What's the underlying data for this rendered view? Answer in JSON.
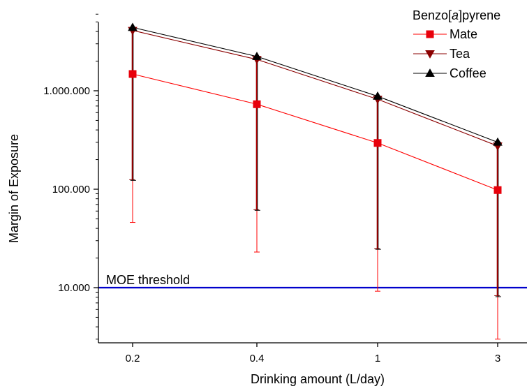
{
  "chart_data": {
    "type": "line",
    "title": "",
    "xlabel": "Drinking amount (L/day)",
    "ylabel": "Margin of Exposure",
    "x_scale": "categorical",
    "y_scale": "log",
    "categories": [
      "0.2",
      "0.4",
      "1",
      "3"
    ],
    "yticks": [
      {
        "value": 10000,
        "label": "10.000"
      },
      {
        "value": 100000,
        "label": "100.000"
      },
      {
        "value": 1000000,
        "label": "1.000.000"
      }
    ],
    "ylim": [
      2700,
      6500000
    ],
    "legend": {
      "title": "Benzo[a]pyrene",
      "placement": "top-right"
    },
    "series": [
      {
        "name": "Mate",
        "marker": "square",
        "color": "#ff0000",
        "markerColor": "#e8000b",
        "values": [
          1480000,
          730000,
          295000,
          98000
        ],
        "err_low": [
          46000,
          23000,
          9200,
          3000
        ],
        "err_high": [
          4400000,
          2200000,
          880000,
          300000
        ]
      },
      {
        "name": "Tea",
        "marker": "triangle-down",
        "color": "#8b0000",
        "markerColor": "#8b0000",
        "values": [
          4100000,
          2080000,
          820000,
          275000
        ],
        "err_low": [
          125000,
          62000,
          25000,
          8300
        ],
        "err_high": [
          4100000,
          2080000,
          820000,
          275000
        ]
      },
      {
        "name": "Coffee",
        "marker": "triangle-up",
        "color": "#000000",
        "markerColor": "#000000",
        "values": [
          4400000,
          2230000,
          880000,
          300000
        ],
        "err_low": [
          123000,
          61000,
          24500,
          8100
        ],
        "err_high": [
          4400000,
          2230000,
          880000,
          300000
        ]
      }
    ],
    "annotations": [
      {
        "type": "hline",
        "y": 10000,
        "label": "MOE threshold",
        "color": "#0000cc"
      }
    ],
    "grid": false
  }
}
